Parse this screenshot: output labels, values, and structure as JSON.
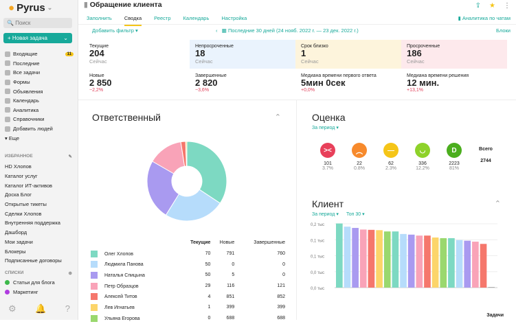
{
  "sidebar": {
    "logo": "Pyrus",
    "search_placeholder": "Поиск",
    "new_task": "+ Новая задача",
    "nav": [
      {
        "label": "Входящие",
        "badge": "11"
      },
      {
        "label": "Последние"
      },
      {
        "label": "Все задачи"
      },
      {
        "label": "Формы"
      },
      {
        "label": "Объявления"
      },
      {
        "label": "Календарь"
      },
      {
        "label": "Аналитика"
      },
      {
        "label": "Справочники"
      },
      {
        "label": "Добавить людей"
      },
      {
        "label": "▾ Еще"
      }
    ],
    "favorites_title": "ИЗБРАННОЕ",
    "favorites": [
      "HD Хлопов",
      "Каталог услуг",
      "Каталог ИТ-активов",
      "Доска Блог",
      "Открытые тикеты",
      "Сделки Хлопов",
      "Внутренняя поддержка",
      "Дашборд",
      "Мои задачи",
      "Блокеры",
      "Подписанные договоры"
    ],
    "lists_title": "СПИСКИ",
    "lists": [
      {
        "label": "Статьи для блога",
        "color": "#3cb84a"
      },
      {
        "label": "Маркетинг",
        "color": "#b03ce0"
      }
    ]
  },
  "header": {
    "title": "Обращение клиента",
    "tabs": [
      "Заполнить",
      "Сводка",
      "Реестр",
      "Календарь",
      "Настройка"
    ],
    "active_tab": "Сводка",
    "chat_analytics": "Аналитика по чатам"
  },
  "toolbar": {
    "add_filter": "Добавить фильтр ▾",
    "period": "Последние 30 дней (24 нояб. 2022 г. — 23 дек. 2022 г.)",
    "blocks": "Блоки"
  },
  "cards": [
    {
      "label": "Текущие",
      "value": "204",
      "sub": "Сейчас",
      "bg": "#ffffff"
    },
    {
      "label": "Непросроченные",
      "value": "18",
      "sub": "Сейчас",
      "bg": "#eaf3fd"
    },
    {
      "label": "Срок близко",
      "value": "1",
      "sub": "Сейчас",
      "bg": "#fdf4dc"
    },
    {
      "label": "Просроченные",
      "value": "186",
      "sub": "Сейчас",
      "bg": "#fde9ec"
    },
    {
      "label": "Новые",
      "value": "2 850",
      "delta": "−2,2%"
    },
    {
      "label": "Завершенные",
      "value": "2 820",
      "delta": "−3,6%"
    },
    {
      "label": "Медиана времени первого ответа",
      "value": "5мин 0сек",
      "delta": "+0,0%"
    },
    {
      "label": "Медиана времени решения",
      "value": "12 мин.",
      "delta": "+13,1%"
    }
  ],
  "responsible": {
    "title": "Ответственный",
    "columns": [
      "Текущие",
      "Новые",
      "Завершенные"
    ],
    "rows": [
      {
        "name": "Олег Хлопов",
        "current": "70",
        "new": "791",
        "done": "760",
        "color": "#7dd9c2"
      },
      {
        "name": "Людмила Панова",
        "current": "50",
        "new": "0",
        "done": "0",
        "color": "#b6dcfb"
      },
      {
        "name": "Наталья Спицына",
        "current": "50",
        "new": "5",
        "done": "0",
        "color": "#a99af0"
      },
      {
        "name": "Петр Образцов",
        "current": "29",
        "new": "116",
        "done": "121",
        "color": "#f9a3b8"
      },
      {
        "name": "Алексей Титов",
        "current": "4",
        "new": "851",
        "done": "852",
        "color": "#f5776c"
      },
      {
        "name": "Лев Игнатьев",
        "current": "1",
        "new": "399",
        "done": "399",
        "color": "#fcd56a"
      },
      {
        "name": "Ульяна Егорова",
        "current": "0",
        "new": "688",
        "done": "688",
        "color": "#9ad86e"
      }
    ]
  },
  "rating": {
    "title": "Оценка",
    "period": "За период ▾",
    "total_label": "Всего",
    "total": "2744",
    "items": [
      {
        "count": "101",
        "pct": "3.7%",
        "color": "#e8405a",
        "face": "><"
      },
      {
        "count": "22",
        "pct": "0.8%",
        "color": "#f78a2c",
        "face": "︵"
      },
      {
        "count": "62",
        "pct": "2.3%",
        "color": "#f5c518",
        "face": "—"
      },
      {
        "count": "336",
        "pct": "12.2%",
        "color": "#8ed22a",
        "face": "◡"
      },
      {
        "count": "2223",
        "pct": "81%",
        "color": "#4bae1e",
        "face": "D"
      }
    ]
  },
  "client": {
    "title": "Клиент",
    "period": "За период ▾",
    "top": "Топ 30 ▾",
    "xlabel": "Задачи"
  },
  "chart_data": {
    "type": "bar",
    "ytick_labels": [
      "0,2 тыс",
      "0,1 тыс",
      "0,1 тыс",
      "0,0 тыс",
      "0,0 тыс"
    ],
    "ylim": [
      0,
      200
    ],
    "grid": true,
    "values": [
      201,
      191,
      187,
      182,
      181,
      180,
      176,
      176,
      168,
      166,
      163,
      163,
      157,
      155,
      155,
      149,
      147,
      144,
      137,
      2
    ],
    "colors": [
      "#7dd9c2",
      "#b6dcfb",
      "#a99af0",
      "#f9a3b8",
      "#f5776c",
      "#fcd56a",
      "#9ad86e"
    ]
  }
}
